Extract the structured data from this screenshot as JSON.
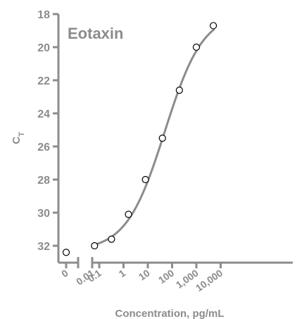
{
  "chart_data": {
    "type": "scatter",
    "title": "Eotaxin",
    "xlabel": "Concentration, pg/mL",
    "ylabel": "C",
    "ylabel_subscript": "T",
    "x_scale": "log",
    "x_broken_axis": true,
    "y_inverted": true,
    "ylim": [
      18,
      33
    ],
    "y_ticks": [
      18,
      20,
      22,
      24,
      26,
      28,
      30,
      32
    ],
    "y_tick_labels": [
      "18",
      "20",
      "22",
      "24",
      "26",
      "28",
      "30",
      "32"
    ],
    "x_ticks": [
      0,
      0.01,
      0.1,
      1,
      10,
      100,
      1000,
      10000
    ],
    "x_tick_labels": [
      "0",
      "0.01",
      "0.1",
      "1",
      "10",
      "100",
      "1,000",
      "10,000"
    ],
    "points": [
      {
        "x": 0,
        "y": 32.4
      },
      {
        "x": 0.064,
        "y": 32.0
      },
      {
        "x": 0.32,
        "y": 31.6
      },
      {
        "x": 1.6,
        "y": 30.1
      },
      {
        "x": 8,
        "y": 28.0
      },
      {
        "x": 40,
        "y": 25.5
      },
      {
        "x": 200,
        "y": 22.6
      },
      {
        "x": 1000,
        "y": 20.0
      },
      {
        "x": 5000,
        "y": 18.7
      }
    ],
    "fit_curve": {
      "type": "4PL",
      "bottom": 32.3,
      "top": 17.9,
      "ec50": 50,
      "hill": 0.55
    },
    "grid": false,
    "legend": "none",
    "colors": {
      "axis": "#8c8c8c",
      "curve": "#8c8c8c",
      "marker_edge": "#000000",
      "marker_fill": "#ffffff"
    }
  }
}
